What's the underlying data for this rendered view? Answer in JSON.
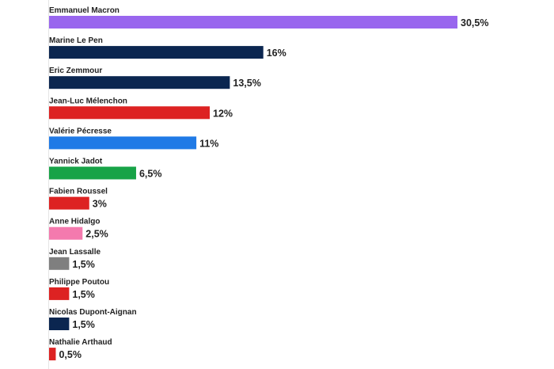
{
  "chart_data": {
    "type": "bar",
    "orientation": "horizontal",
    "categories": [
      "Emmanuel Macron",
      "Marine Le Pen",
      "Eric Zemmour",
      "Jean-Luc Mélenchon",
      "Valérie Pécresse",
      "Yannick Jadot",
      "Fabien Roussel",
      "Anne Hidalgo",
      "Jean Lassalle",
      "Philippe Poutou",
      "Nicolas Dupont-Aignan",
      "Nathalie Arthaud"
    ],
    "values": [
      30.5,
      16,
      13.5,
      12,
      11,
      6.5,
      3,
      2.5,
      1.5,
      1.5,
      1.5,
      0.5
    ],
    "value_labels": [
      "30,5%",
      "16%",
      "13,5%",
      "12%",
      "11%",
      "6,5%",
      "3%",
      "2,5%",
      "1,5%",
      "1,5%",
      "1,5%",
      "0,5%"
    ],
    "colors": [
      "#9966ee",
      "#0b2650",
      "#0b2650",
      "#dd2222",
      "#1f7ae6",
      "#17a347",
      "#dd2222",
      "#f47aae",
      "#7f7f7f",
      "#dd2222",
      "#0b2650",
      "#dd2222"
    ],
    "xlim": [
      0,
      30.5
    ],
    "grid": false,
    "legend": "none",
    "title": "",
    "xlabel": "",
    "ylabel": ""
  }
}
